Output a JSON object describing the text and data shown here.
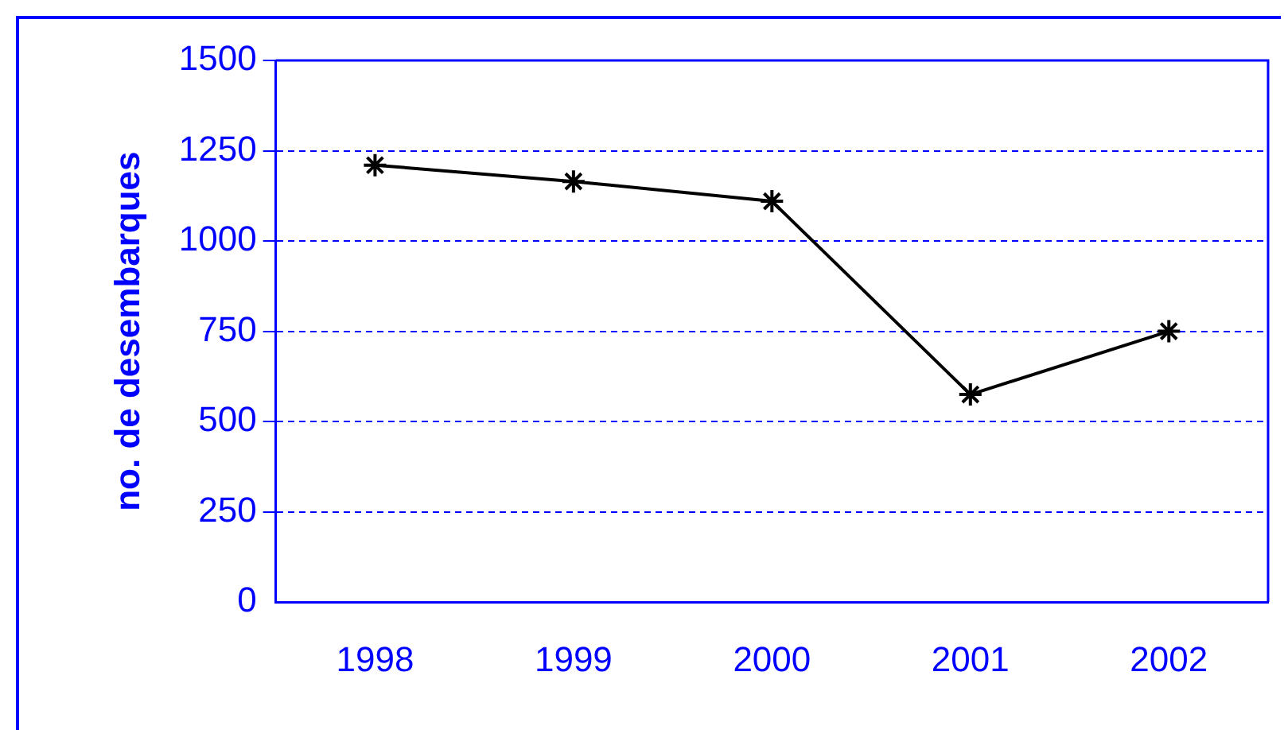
{
  "chart_data": {
    "type": "line",
    "ylabel": "no. de desembarques",
    "categories": [
      "1998",
      "1999",
      "2000",
      "2001",
      "2002"
    ],
    "series": [
      {
        "color": "#000000",
        "values": [
          1210,
          1165,
          1110,
          575,
          750
        ]
      }
    ],
    "ylim": [
      0,
      1500
    ],
    "yticks": [
      0,
      250,
      500,
      750,
      1000,
      1250,
      1500
    ],
    "grid": "y",
    "legend": false,
    "marker": "cross",
    "line_style": "solid"
  }
}
